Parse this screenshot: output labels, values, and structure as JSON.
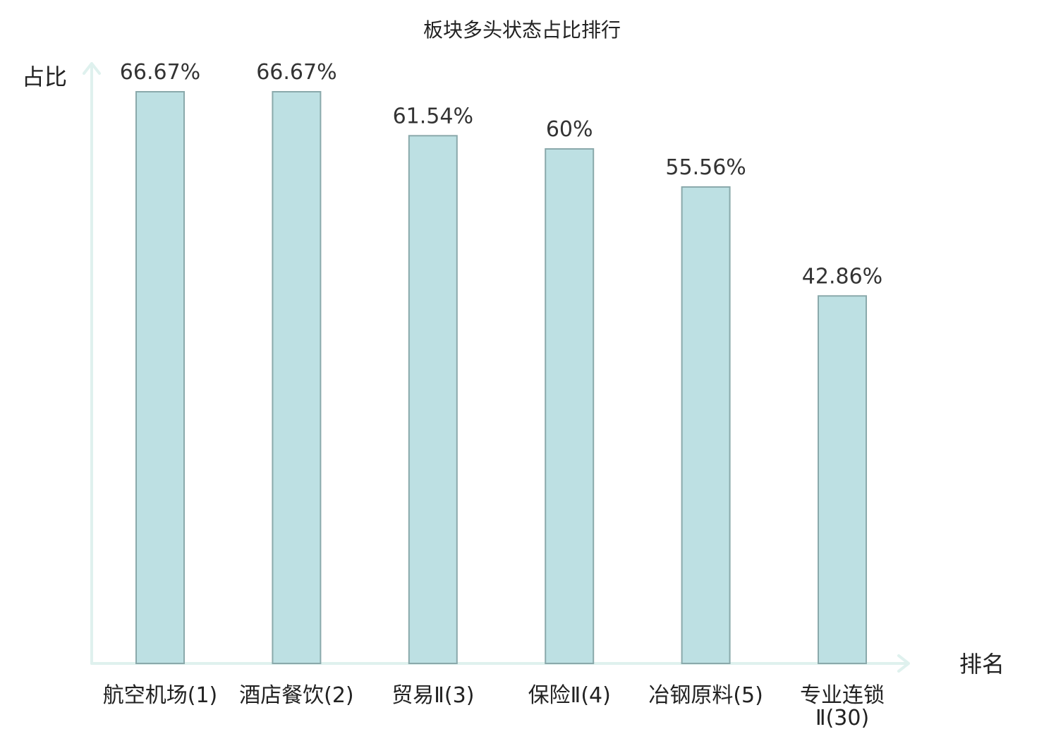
{
  "chart_data": {
    "type": "bar",
    "title": "板块多头状态占比排行",
    "ylabel": "占比",
    "xlabel": "排名",
    "ylim": [
      0,
      70
    ],
    "grid": false,
    "legend": "none",
    "categories": [
      [
        "航空机场(1)"
      ],
      [
        "酒店餐饮(2)"
      ],
      [
        "贸易Ⅱ(3)"
      ],
      [
        "保险Ⅱ(4)"
      ],
      [
        "冶钢原料(5)"
      ],
      [
        "专业连锁",
        "Ⅱ(30)"
      ]
    ],
    "values": [
      66.67,
      66.67,
      61.54,
      60,
      55.56,
      42.86
    ],
    "value_labels": [
      "66.67%",
      "66.67%",
      "61.54%",
      "60%",
      "55.56%",
      "42.86%"
    ],
    "category_colors": [
      "#222222",
      "#222222",
      "#222222",
      "#222222",
      "#222222",
      "#e02020"
    ],
    "colors": {
      "bar_fill": "#bde0e3",
      "bar_stroke": "#8aa9ab",
      "axis": "#dff1ee",
      "highlight": "#e02020"
    }
  }
}
